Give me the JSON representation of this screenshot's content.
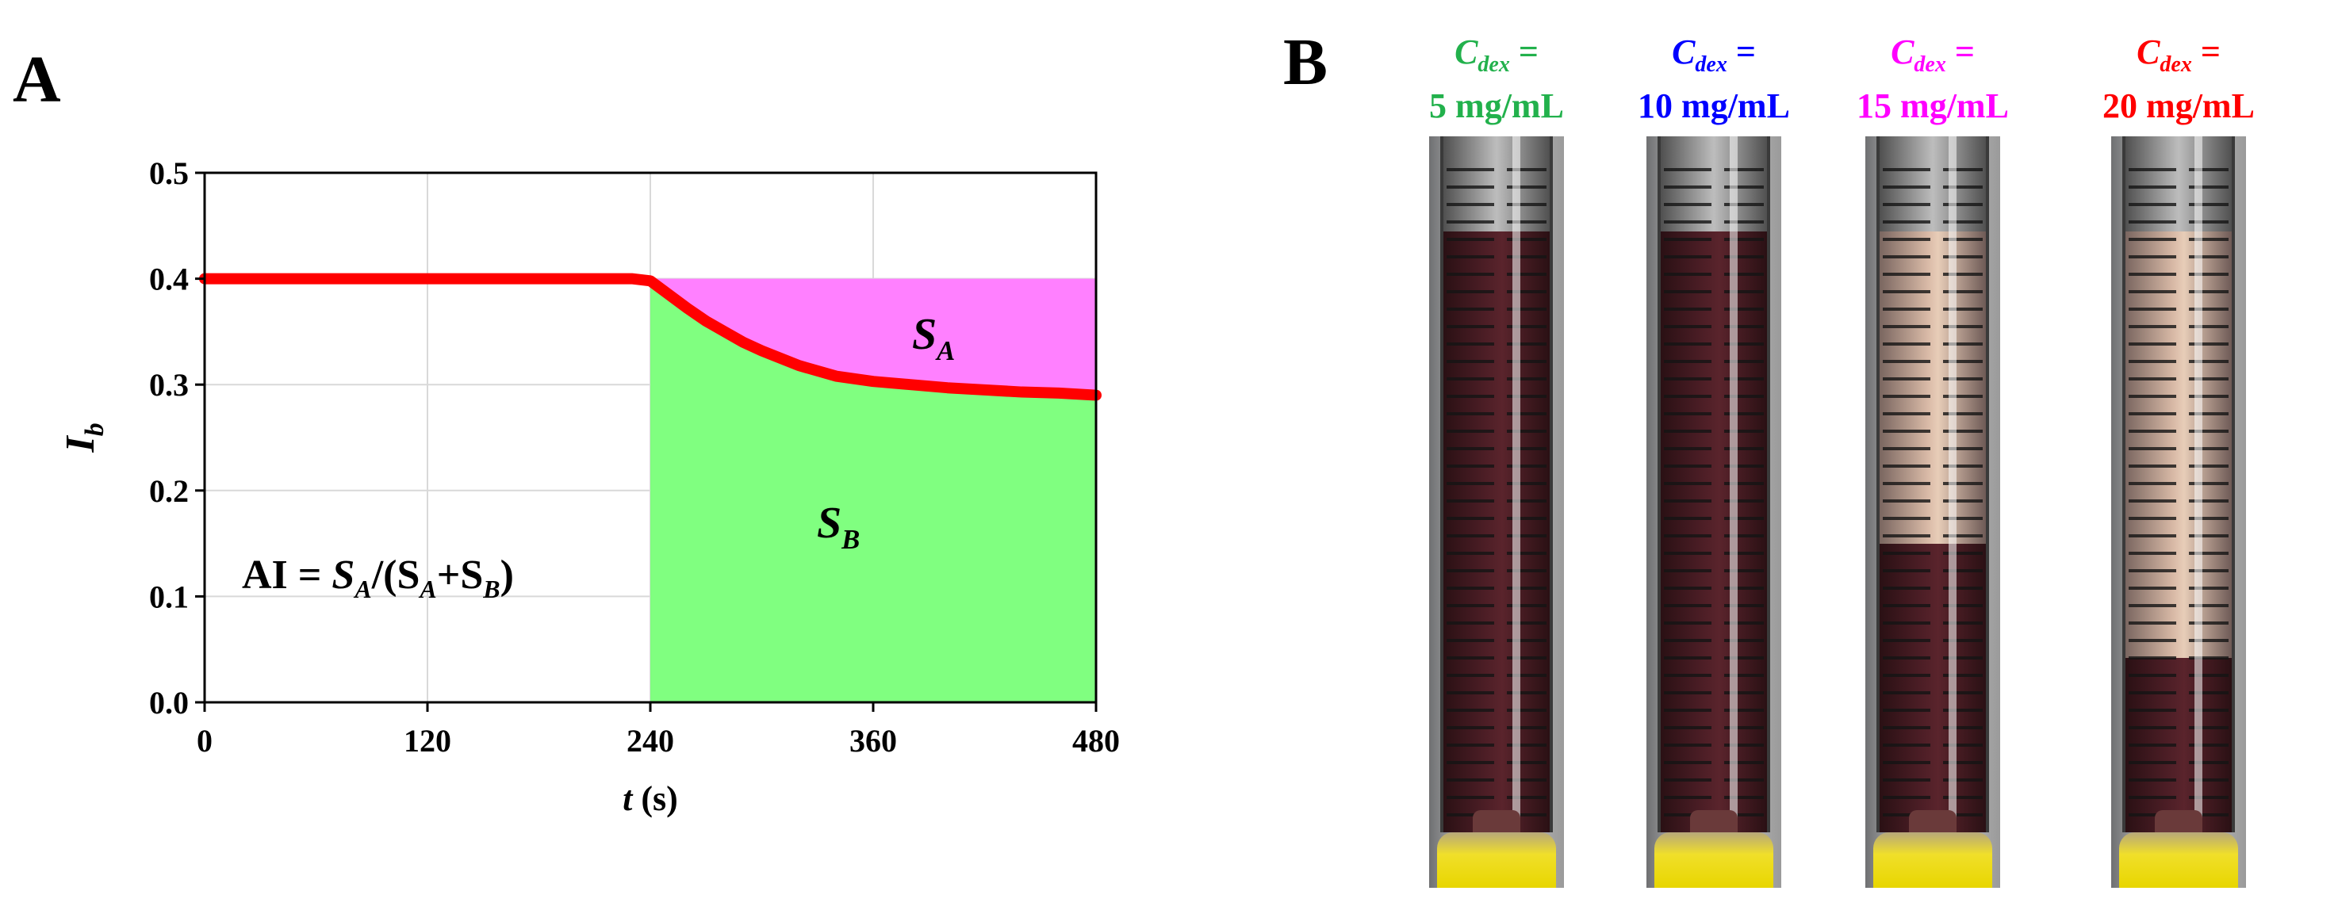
{
  "panels": {
    "a_letter": "A",
    "b_letter": "B"
  },
  "chart_data": {
    "type": "area",
    "title": "",
    "xlabel_var": "t",
    "xlabel_unit": " (s)",
    "ylabel_var": "I",
    "ylabel_sub": "b",
    "xlim": [
      0,
      480
    ],
    "ylim": [
      0.0,
      0.5
    ],
    "x_ticks": [
      0,
      120,
      240,
      360,
      480
    ],
    "x_tick_labels": [
      "0",
      "120",
      "240",
      "360",
      "480"
    ],
    "y_ticks": [
      0.0,
      0.1,
      0.2,
      0.3,
      0.4,
      0.5
    ],
    "y_tick_labels": [
      "0.0",
      "0.1",
      "0.2",
      "0.3",
      "0.4",
      "0.5"
    ],
    "grid": true,
    "series": [
      {
        "x": [
          0,
          60,
          120,
          180,
          230,
          240,
          250,
          260,
          270,
          280,
          290,
          300,
          320,
          340,
          360,
          380,
          400,
          420,
          440,
          460,
          480
        ],
        "y": [
          0.4,
          0.4,
          0.4,
          0.4,
          0.4,
          0.398,
          0.385,
          0.372,
          0.36,
          0.35,
          0.34,
          0.332,
          0.318,
          0.308,
          0.303,
          0.3,
          0.297,
          0.295,
          0.293,
          0.292,
          0.29
        ],
        "color": "#ff0000"
      }
    ],
    "regions": [
      {
        "name": "S_A",
        "label_main": "S",
        "label_sub": "A",
        "color": "#ff80ff",
        "x_range": [
          240,
          480
        ],
        "between": "0.4 and curve"
      },
      {
        "name": "S_B",
        "label_main": "S",
        "label_sub": "B",
        "color": "#80ff80",
        "x_range": [
          240,
          480
        ],
        "between": "0 and curve"
      }
    ],
    "annotation": {
      "prefix": "AI = ",
      "sa": "S",
      "sa_sub": "A",
      "mid": "/(S",
      "mid_sub": "A",
      "plus": "+S",
      "plus_sub": "B",
      "close": ")"
    }
  },
  "tubes": [
    {
      "label_var": "C",
      "label_sub": "dex",
      "label_eq": " =",
      "label_value": "5 mg/mL",
      "color": "#22b14c",
      "rbc_fraction": 1.0
    },
    {
      "label_var": "C",
      "label_sub": "dex",
      "label_eq": " =",
      "label_value": "10 mg/mL",
      "color": "#0000ff",
      "rbc_fraction": 1.0
    },
    {
      "label_var": "C",
      "label_sub": "dex",
      "label_eq": " =",
      "label_value": "15 mg/mL",
      "color": "#ff00ff",
      "rbc_fraction": 0.48
    },
    {
      "label_var": "C",
      "label_sub": "dex",
      "label_eq": " =",
      "label_value": "20 mg/mL",
      "color": "#ff0000",
      "rbc_fraction": 0.29
    }
  ]
}
